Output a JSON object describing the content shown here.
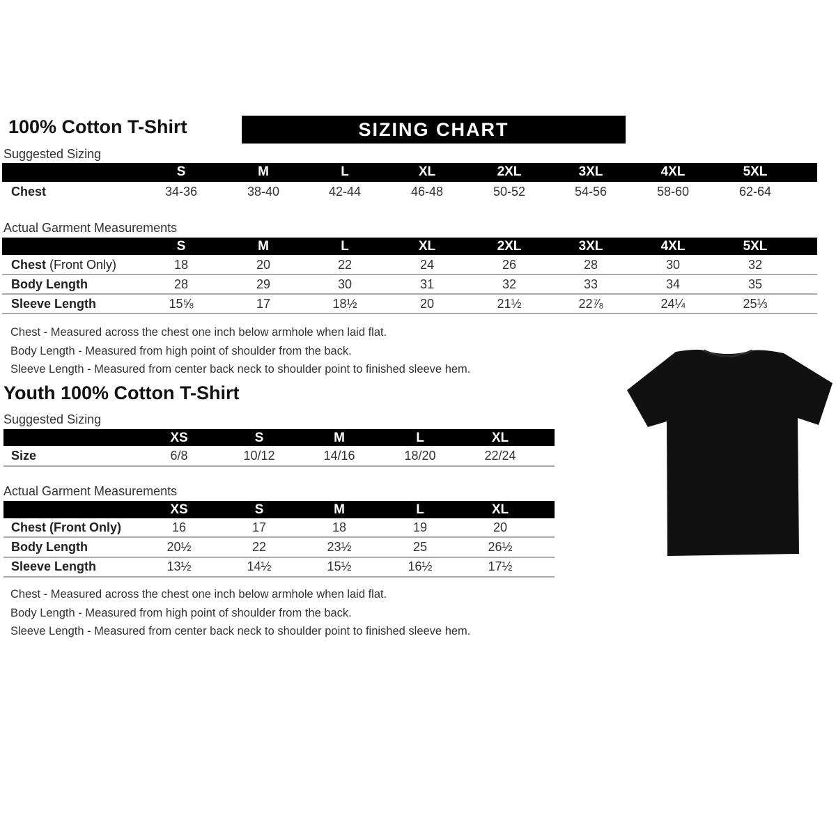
{
  "adult": {
    "title": "100% Cotton T-Shirt",
    "banner": "SIZING CHART",
    "suggested_label": "Suggested Sizing",
    "sizes": [
      "S",
      "M",
      "L",
      "XL",
      "2XL",
      "3XL",
      "4XL",
      "5XL"
    ],
    "suggested_rows": [
      {
        "label": "Chest",
        "values": [
          "34-36",
          "38-40",
          "42-44",
          "46-48",
          "50-52",
          "54-56",
          "58-60",
          "62-64"
        ]
      }
    ],
    "actual_label": "Actual Garment Measurements",
    "actual_rows": [
      {
        "label": "Chest",
        "label_suffix": " (Front Only)",
        "values": [
          "18",
          "20",
          "22",
          "24",
          "26",
          "28",
          "30",
          "32"
        ]
      },
      {
        "label": "Body Length",
        "label_suffix": "",
        "values": [
          "28",
          "29",
          "30",
          "31",
          "32",
          "33",
          "34",
          "35"
        ]
      },
      {
        "label": "Sleeve Length",
        "label_suffix": "",
        "values": [
          "15⅝",
          "17",
          "18½",
          "20",
          "21½",
          "22⅞",
          "24¼",
          "25⅓"
        ]
      }
    ],
    "notes": [
      "Chest - Measured across the chest one inch below armhole when laid flat.",
      "Body Length - Measured from high point of shoulder from the back.",
      "Sleeve Length - Measured from center back neck to shoulder point to finished sleeve hem."
    ]
  },
  "youth": {
    "title": "Youth 100% Cotton T-Shirt",
    "suggested_label": "Suggested Sizing",
    "sizes": [
      "XS",
      "S",
      "M",
      "L",
      "XL"
    ],
    "suggested_rows": [
      {
        "label": "Size",
        "values": [
          "6/8",
          "10/12",
          "14/16",
          "18/20",
          "22/24"
        ]
      }
    ],
    "actual_label": "Actual Garment Measurements",
    "actual_rows": [
      {
        "label": "Chest (Front Only)",
        "label_suffix": "",
        "values": [
          "16",
          "17",
          "18",
          "19",
          "20"
        ]
      },
      {
        "label": "Body Length",
        "label_suffix": "",
        "values": [
          "20½",
          "22",
          "23½",
          "25",
          "26½"
        ]
      },
      {
        "label": "Sleeve Length",
        "label_suffix": "",
        "values": [
          "13½",
          "14½",
          "15½",
          "16½",
          "17½"
        ]
      }
    ],
    "notes": [
      "Chest - Measured across the chest one inch below armhole when laid flat.",
      "Body Length - Measured from high point of shoulder from the back.",
      "Sleeve Length - Measured from center back neck to shoulder point to finished sleeve hem."
    ]
  },
  "image": {
    "icon": "black-tshirt",
    "color": "#111111"
  }
}
